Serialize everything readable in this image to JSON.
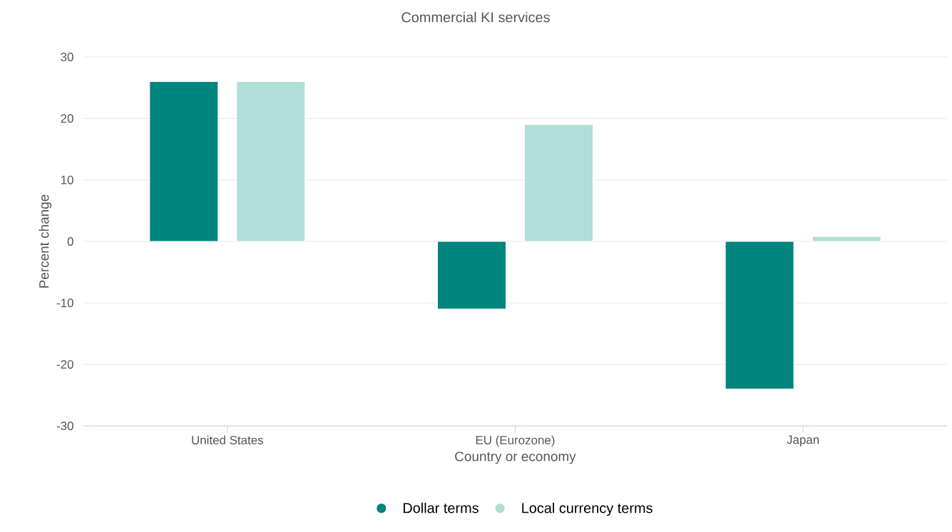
{
  "chart_data": {
    "type": "bar",
    "title": "Commercial KI services",
    "xlabel": "Country or economy",
    "ylabel": "Percent change",
    "categories": [
      "United States",
      "EU (Eurozone)",
      "Japan"
    ],
    "series": [
      {
        "name": "Dollar terms",
        "color": "#00857f",
        "values": [
          26,
          -11,
          -24
        ]
      },
      {
        "name": "Local currency terms",
        "color": "#b0ded9",
        "values": [
          26,
          19,
          0.8
        ]
      }
    ],
    "ylim": [
      -30,
      30
    ],
    "yticks": [
      -30,
      -20,
      -10,
      0,
      10,
      20,
      30
    ],
    "grid": "y",
    "legend": "bottom"
  }
}
